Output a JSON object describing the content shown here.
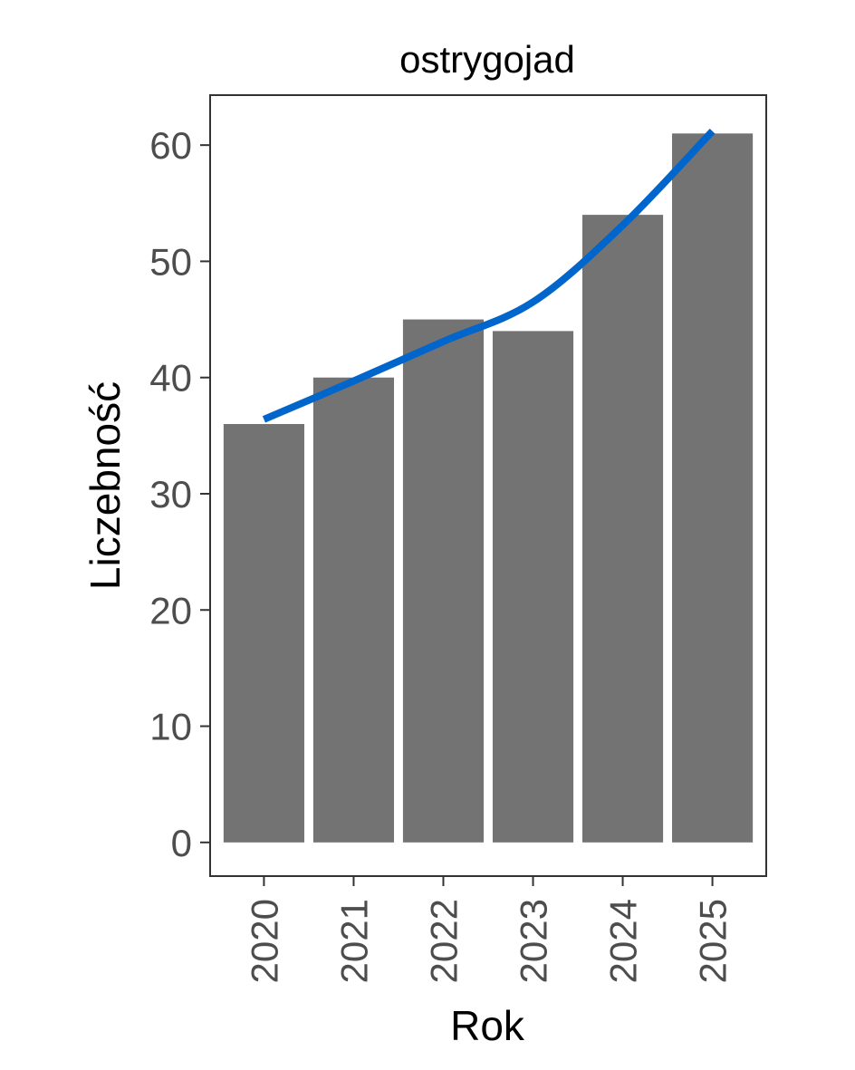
{
  "chart_data": {
    "type": "bar",
    "title": "ostrygojad",
    "xlabel": "Rok",
    "ylabel": "Liczebność",
    "categories": [
      "2020",
      "2021",
      "2022",
      "2023",
      "2024",
      "2025"
    ],
    "values": [
      36,
      40,
      45,
      44,
      54,
      61
    ],
    "trend": [
      36.4,
      39.7,
      43.1,
      46.5,
      53.1,
      61.2
    ],
    "yticks": [
      0,
      10,
      20,
      30,
      40,
      50,
      60
    ],
    "ylim": [
      -2.9,
      64.3
    ],
    "grid": false,
    "legend": "none",
    "colors": {
      "bar": "#737373",
      "trend": "#0066cc",
      "panel_border": "#333333",
      "tick_text": "#4d4d4d"
    }
  }
}
